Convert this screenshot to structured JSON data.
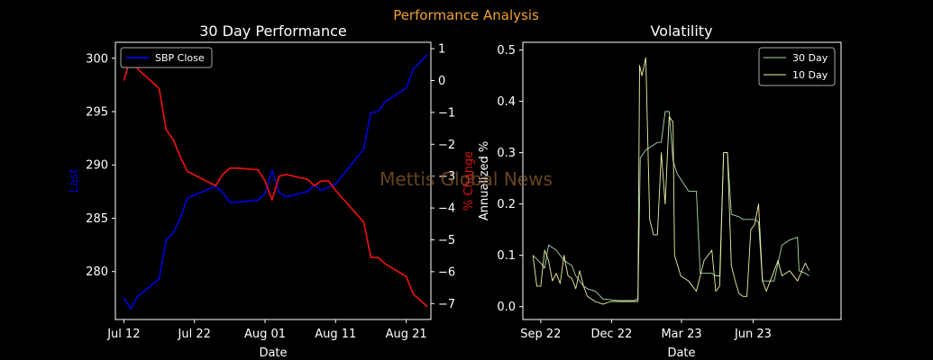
{
  "figure": {
    "suptitle": "Performance Analysis",
    "watermark": "Mettis Global News",
    "colors": {
      "suptitle": "#f0a030",
      "watermark": "#8a5a2a"
    }
  },
  "chart_data": [
    {
      "type": "line",
      "title": "30 Day Performance",
      "xlabel": "Date",
      "ylabel": "Last",
      "ylabel_right": "% Change",
      "x_ticks": [
        "Jul 12",
        "Jul 22",
        "Aug 01",
        "Aug 11",
        "Aug 21"
      ],
      "x_tick_days": [
        0,
        10,
        20,
        30,
        40
      ],
      "xlim_days": [
        -1.2,
        43.5
      ],
      "ylim": [
        275.5,
        301.5
      ],
      "y_ticks": [
        280,
        285,
        290,
        295,
        300
      ],
      "ylim_right": [
        -7.5,
        1.2
      ],
      "y_ticks_right": [
        -7,
        -6,
        -5,
        -4,
        -3,
        -2,
        -1,
        0,
        1
      ],
      "legend": {
        "placement": "upper-left",
        "entries": [
          "SBP Close"
        ]
      },
      "series": [
        {
          "name": "SBP Close",
          "axis": "left",
          "color": "#0000cc",
          "x_days": [
            0,
            1,
            2,
            5,
            6,
            7,
            8,
            9,
            13,
            14,
            15,
            16,
            19,
            20,
            21,
            22,
            23,
            26,
            27,
            28,
            29,
            30,
            34,
            35,
            36,
            37,
            40,
            41,
            43
          ],
          "y": [
            277.5,
            276.5,
            277.7,
            279.3,
            283.0,
            283.6,
            285.0,
            286.9,
            288.0,
            287.4,
            286.5,
            286.5,
            286.7,
            287.3,
            289.5,
            287.4,
            287.0,
            287.5,
            288.1,
            287.6,
            287.9,
            288.2,
            291.5,
            294.9,
            295.0,
            295.9,
            297.2,
            299.0,
            300.3
          ]
        },
        {
          "name": "% Change",
          "axis": "right",
          "color": "#dd1111",
          "x_days": [
            0,
            1,
            2,
            5,
            6,
            7,
            8,
            9,
            13,
            14,
            15,
            16,
            19,
            20,
            21,
            22,
            23,
            26,
            27,
            28,
            29,
            30,
            34,
            35,
            36,
            37,
            40,
            41,
            43
          ],
          "y": [
            0.0,
            0.75,
            0.35,
            -0.25,
            -1.55,
            -1.85,
            -2.4,
            -2.85,
            -3.3,
            -2.95,
            -2.75,
            -2.75,
            -2.8,
            -3.15,
            -3.75,
            -3.0,
            -2.95,
            -3.1,
            -3.3,
            -3.15,
            -3.15,
            -3.45,
            -4.45,
            -5.55,
            -5.55,
            -5.75,
            -6.15,
            -6.7,
            -7.1
          ]
        }
      ]
    },
    {
      "type": "line",
      "title": "Volatility",
      "xlabel": "Date",
      "ylabel": "Annualized %",
      "x_ticks": [
        "Sep 22",
        "Dec 22",
        "Mar 23",
        "Jun 23"
      ],
      "x_tick_days": [
        0,
        91,
        181,
        273
      ],
      "xlim_days": [
        -23,
        386
      ],
      "ylim": [
        -0.025,
        0.515
      ],
      "y_ticks": [
        0.0,
        0.1,
        0.2,
        0.3,
        0.4,
        0.5
      ],
      "legend": {
        "placement": "upper-right",
        "entries": [
          "30 Day",
          "10 Day"
        ]
      },
      "series": [
        {
          "name": "30 Day",
          "color": "#a8d8b0",
          "x_days": [
            -10,
            0,
            5,
            10,
            20,
            30,
            40,
            45,
            55,
            60,
            70,
            80,
            100,
            120,
            125,
            128,
            135,
            140,
            145,
            150,
            155,
            160,
            165,
            170,
            175,
            190,
            200,
            205,
            210,
            220,
            225,
            230,
            235,
            240,
            245,
            255,
            260,
            275,
            280,
            285,
            290,
            300,
            310,
            320,
            330,
            332,
            340,
            345
          ],
          "y": [
            0.1,
            0.085,
            0.075,
            0.12,
            0.11,
            0.09,
            0.08,
            0.06,
            0.04,
            0.035,
            0.03,
            0.015,
            0.012,
            0.012,
            0.015,
            0.29,
            0.305,
            0.31,
            0.315,
            0.32,
            0.32,
            0.38,
            0.38,
            0.285,
            0.26,
            0.225,
            0.225,
            0.065,
            0.065,
            0.065,
            0.06,
            0.06,
            0.3,
            0.3,
            0.18,
            0.175,
            0.17,
            0.17,
            0.165,
            0.05,
            0.05,
            0.05,
            0.12,
            0.13,
            0.135,
            0.07,
            0.065,
            0.06
          ]
        },
        {
          "name": "10 Day",
          "color": "#f0f0a0",
          "x_days": [
            -10,
            -5,
            0,
            5,
            10,
            15,
            20,
            25,
            30,
            35,
            40,
            45,
            50,
            55,
            60,
            70,
            80,
            90,
            100,
            110,
            120,
            125,
            127,
            130,
            135,
            140,
            145,
            150,
            155,
            160,
            165,
            170,
            172,
            180,
            190,
            200,
            205,
            210,
            220,
            225,
            230,
            235,
            240,
            245,
            250,
            255,
            260,
            265,
            270,
            275,
            280,
            285,
            290,
            300,
            305,
            310,
            320,
            330,
            340,
            345
          ],
          "y": [
            0.1,
            0.04,
            0.04,
            0.11,
            0.09,
            0.05,
            0.065,
            0.045,
            0.1,
            0.06,
            0.055,
            0.035,
            0.07,
            0.04,
            0.02,
            0.01,
            0.005,
            0.01,
            0.01,
            0.01,
            0.01,
            0.01,
            0.47,
            0.45,
            0.485,
            0.17,
            0.14,
            0.14,
            0.3,
            0.2,
            0.37,
            0.36,
            0.1,
            0.06,
            0.05,
            0.03,
            0.06,
            0.09,
            0.11,
            0.03,
            0.04,
            0.3,
            0.3,
            0.08,
            0.05,
            0.025,
            0.02,
            0.02,
            0.15,
            0.16,
            0.2,
            0.05,
            0.03,
            0.07,
            0.09,
            0.06,
            0.07,
            0.05,
            0.085,
            0.07
          ]
        }
      ]
    }
  ]
}
